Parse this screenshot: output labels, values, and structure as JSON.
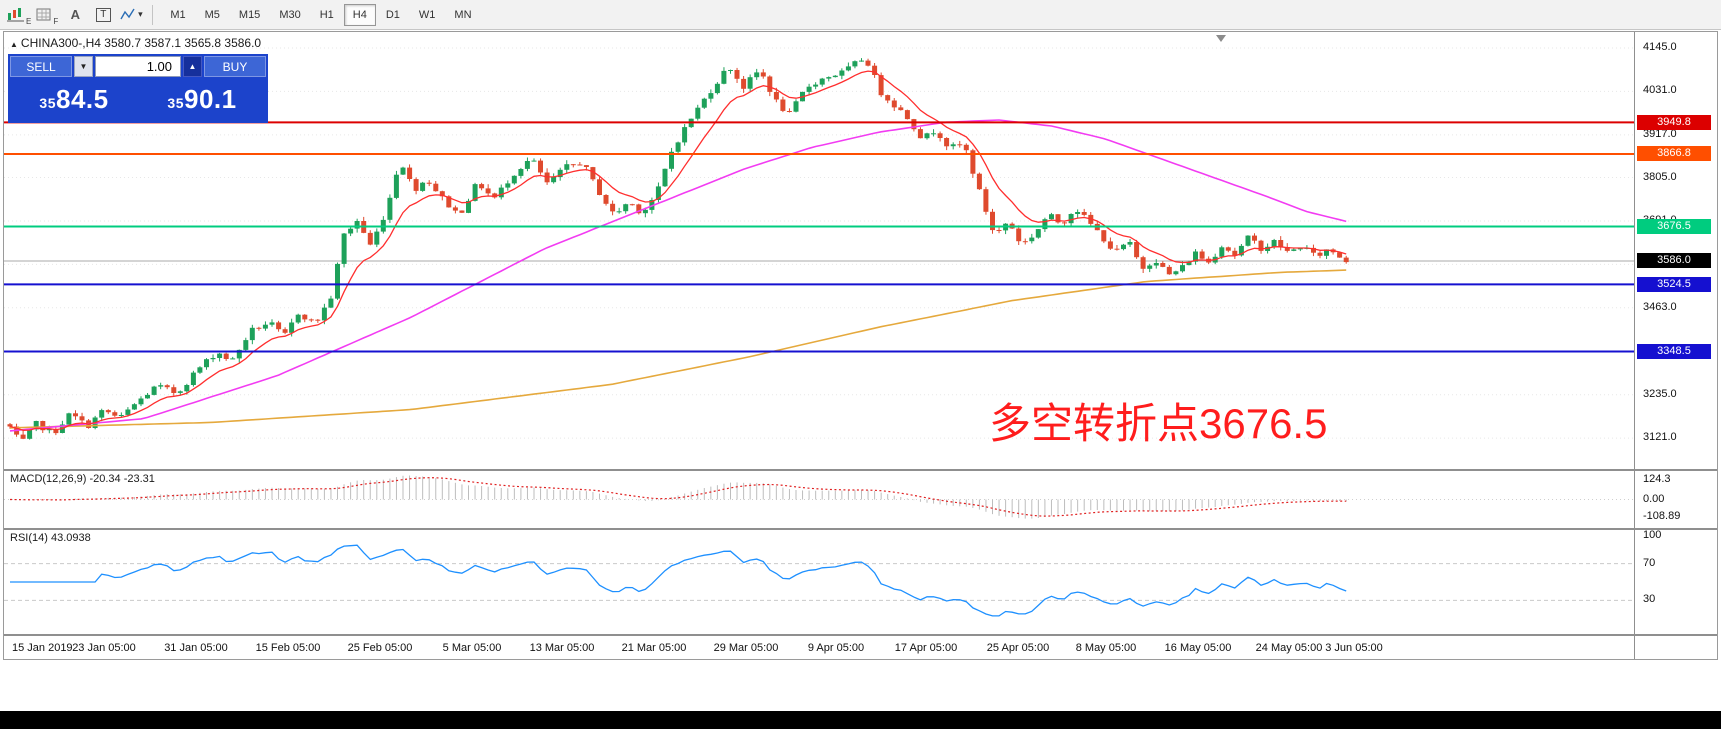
{
  "icons": {
    "header_arrow": "▲",
    "spin_up": "▲",
    "spin_down": "▼",
    "caret_down": "▾",
    "letter_a": "A",
    "boxed_t": "T"
  },
  "toolbar": {
    "timeframes": [
      "M1",
      "M5",
      "M15",
      "M30",
      "H1",
      "H4",
      "D1",
      "W1",
      "MN"
    ],
    "active_timeframe": "H4"
  },
  "chart": {
    "header": "CHINA300-,H4  3580.7 3587.1 3565.8 3586.0",
    "trade_panel": {
      "sell_label": "SELL",
      "buy_label": "BUY",
      "volume": "1.00",
      "sell_price_small": "35",
      "sell_price_big": "84.5",
      "buy_price_small": "35",
      "buy_price_big": "90.1",
      "bg": "#1c43cb"
    },
    "levels": [
      {
        "label": "3949.8",
        "value": 3949.8,
        "color": "#dc0000"
      },
      {
        "label": "3866.8",
        "value": 3866.8,
        "color": "#ff4f00"
      },
      {
        "label": "3676.5",
        "value": 3676.5,
        "color": "#00cc7f"
      },
      {
        "label": "3524.5",
        "value": 3524.5,
        "color": "#1510d0"
      },
      {
        "label": "3348.5",
        "value": 3348.5,
        "color": "#1510d0"
      }
    ],
    "bid": {
      "label": "3586.0",
      "value": 3586.0,
      "box_color": "#000000",
      "line_color": "#a8a8a8"
    },
    "y_ticks": [
      "4145.0",
      "4031.0",
      "3917.0",
      "3805.0",
      "3691.0",
      "3463.0",
      "3235.0",
      "3121.0"
    ],
    "grid_ticks": [
      4145,
      4031,
      3917,
      3805,
      3691,
      3577,
      3463,
      3349,
      3235,
      3121
    ],
    "time_ticks": [
      "15 Jan 2019",
      "23 Jan 05:00",
      "31 Jan 05:00",
      "15 Feb 05:00",
      "25 Feb 05:00",
      "5 Mar 05:00",
      "13 Mar 05:00",
      "21 Mar 05:00",
      "29 Mar 05:00",
      "9 Apr 05:00",
      "17 Apr 05:00",
      "25 Apr 05:00",
      "8 May 05:00",
      "16 May 05:00",
      "24 May 05:00",
      "3 Jun 05:00"
    ],
    "annotation": {
      "text": "多空转折点3676.5",
      "color": "#ff1d1d"
    }
  },
  "macd": {
    "title": "MACD(12,26,9) -20.34 -23.31",
    "y_ticks": [
      {
        "label": "124.3",
        "value": 124.3
      },
      {
        "label": "0.00",
        "value": 0
      },
      {
        "label": "-108.89",
        "value": -108.89
      }
    ]
  },
  "rsi": {
    "title": "RSI(14) 43.0938",
    "y_ticks": [
      {
        "label": "100",
        "value": 100
      },
      {
        "label": "70",
        "value": 70
      },
      {
        "label": "30",
        "value": 30
      }
    ],
    "levels": [
      70,
      30
    ]
  },
  "chart_data": {
    "type": "candlestick",
    "symbol": "CHINA300-",
    "period": "H4",
    "visible_range": {
      "start": "15 Jan 2019",
      "end": "3 Jun 2019"
    },
    "ohlc_header": {
      "open": 3580.7,
      "high": 3587.1,
      "low": 3565.8,
      "close": 3586.0
    },
    "y_range": [
      3040,
      4187
    ],
    "num_candles": 205,
    "up_color": "#1ea15a",
    "down_color": "#df4a2e",
    "ma_fast_color": "#ff2e2e",
    "ma_mid_color": "#f23cf2",
    "ma_slow_color": "#e5a93d",
    "price_path_anchors": [
      [
        0,
        3150
      ],
      [
        0.008,
        3105
      ],
      [
        0.02,
        3160
      ],
      [
        0.032,
        3132
      ],
      [
        0.045,
        3185
      ],
      [
        0.058,
        3152
      ],
      [
        0.07,
        3195
      ],
      [
        0.082,
        3172
      ],
      [
        0.095,
        3215
      ],
      [
        0.11,
        3258
      ],
      [
        0.125,
        3238
      ],
      [
        0.14,
        3300
      ],
      [
        0.155,
        3348
      ],
      [
        0.166,
        3322
      ],
      [
        0.18,
        3402
      ],
      [
        0.194,
        3425
      ],
      [
        0.205,
        3386
      ],
      [
        0.216,
        3452
      ],
      [
        0.228,
        3420
      ],
      [
        0.24,
        3488
      ],
      [
        0.25,
        3655
      ],
      [
        0.26,
        3692
      ],
      [
        0.27,
        3625
      ],
      [
        0.282,
        3722
      ],
      [
        0.292,
        3855
      ],
      [
        0.302,
        3772
      ],
      [
        0.312,
        3802
      ],
      [
        0.324,
        3748
      ],
      [
        0.336,
        3706
      ],
      [
        0.35,
        3792
      ],
      [
        0.362,
        3748
      ],
      [
        0.376,
        3812
      ],
      [
        0.39,
        3856
      ],
      [
        0.402,
        3788
      ],
      [
        0.416,
        3832
      ],
      [
        0.428,
        3846
      ],
      [
        0.44,
        3772
      ],
      [
        0.452,
        3706
      ],
      [
        0.463,
        3742
      ],
      [
        0.473,
        3712
      ],
      [
        0.484,
        3762
      ],
      [
        0.496,
        3882
      ],
      [
        0.51,
        3962
      ],
      [
        0.524,
        4032
      ],
      [
        0.538,
        4098
      ],
      [
        0.549,
        4042
      ],
      [
        0.561,
        4088
      ],
      [
        0.573,
        4006
      ],
      [
        0.583,
        3968
      ],
      [
        0.596,
        4042
      ],
      [
        0.61,
        4068
      ],
      [
        0.624,
        4082
      ],
      [
        0.64,
        4122
      ],
      [
        0.652,
        4028
      ],
      [
        0.663,
        3992
      ],
      [
        0.673,
        3958
      ],
      [
        0.683,
        3906
      ],
      [
        0.693,
        3932
      ],
      [
        0.703,
        3882
      ],
      [
        0.714,
        3892
      ],
      [
        0.726,
        3762
      ],
      [
        0.737,
        3652
      ],
      [
        0.747,
        3692
      ],
      [
        0.757,
        3628
      ],
      [
        0.767,
        3658
      ],
      [
        0.777,
        3708
      ],
      [
        0.787,
        3682
      ],
      [
        0.797,
        3728
      ],
      [
        0.807,
        3688
      ],
      [
        0.817,
        3652
      ],
      [
        0.827,
        3606
      ],
      [
        0.837,
        3638
      ],
      [
        0.847,
        3566
      ],
      [
        0.857,
        3592
      ],
      [
        0.867,
        3548
      ],
      [
        0.877,
        3568
      ],
      [
        0.887,
        3608
      ],
      [
        0.897,
        3582
      ],
      [
        0.907,
        3628
      ],
      [
        0.917,
        3602
      ],
      [
        0.927,
        3648
      ],
      [
        0.937,
        3618
      ],
      [
        0.947,
        3638
      ],
      [
        0.957,
        3606
      ],
      [
        0.967,
        3628
      ],
      [
        0.977,
        3596
      ],
      [
        0.987,
        3618
      ],
      [
        1,
        3586
      ]
    ],
    "ma_magenta_anchors": [
      [
        0,
        3140
      ],
      [
        0.1,
        3172
      ],
      [
        0.2,
        3285
      ],
      [
        0.3,
        3438
      ],
      [
        0.4,
        3618
      ],
      [
        0.5,
        3758
      ],
      [
        0.55,
        3828
      ],
      [
        0.6,
        3884
      ],
      [
        0.65,
        3924
      ],
      [
        0.7,
        3950
      ],
      [
        0.74,
        3956
      ],
      [
        0.78,
        3940
      ],
      [
        0.82,
        3906
      ],
      [
        0.86,
        3856
      ],
      [
        0.9,
        3806
      ],
      [
        0.94,
        3756
      ],
      [
        0.97,
        3716
      ],
      [
        1,
        3690
      ]
    ],
    "ma_orange_anchors": [
      [
        0,
        3148
      ],
      [
        0.15,
        3162
      ],
      [
        0.3,
        3196
      ],
      [
        0.45,
        3262
      ],
      [
        0.55,
        3332
      ],
      [
        0.65,
        3412
      ],
      [
        0.75,
        3482
      ],
      [
        0.85,
        3532
      ],
      [
        0.95,
        3556
      ],
      [
        1,
        3562
      ]
    ]
  }
}
